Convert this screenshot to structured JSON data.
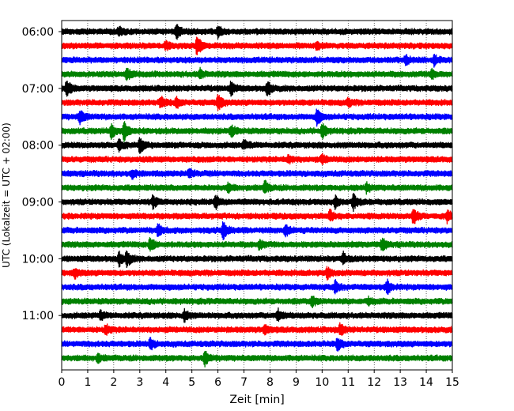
{
  "chart_data": {
    "type": "line",
    "title": "",
    "xlabel": "Zeit  [min]",
    "ylabel": "UTC (Lokalzeit = UTC + 02:00)",
    "xlim": [
      0,
      15
    ],
    "x_ticks": [
      "0",
      "1",
      "2",
      "3",
      "4",
      "5",
      "6",
      "7",
      "8",
      "9",
      "10",
      "11",
      "12",
      "13",
      "14",
      "15"
    ],
    "y_tick_labels": [
      "06:00",
      "07:00",
      "08:00",
      "09:00",
      "10:00",
      "11:00"
    ],
    "grid_x": true,
    "trace_interval_minutes": 15,
    "colors": [
      "#000000",
      "#ff0000",
      "#0000ff",
      "#008000"
    ],
    "series": [
      {
        "time": "06:00",
        "color": "#000000",
        "events": [
          [
            2.2,
            0.6
          ],
          [
            4.4,
            1.0
          ],
          [
            6.0,
            0.8
          ]
        ]
      },
      {
        "time": "06:15",
        "color": "#ff0000",
        "events": [
          [
            4.0,
            0.5
          ],
          [
            5.2,
            1.4
          ],
          [
            9.8,
            0.4
          ]
        ]
      },
      {
        "time": "06:30",
        "color": "#0000ff",
        "events": [
          [
            13.2,
            0.6
          ],
          [
            14.3,
            0.7
          ]
        ]
      },
      {
        "time": "06:45",
        "color": "#008000",
        "events": [
          [
            2.5,
            0.7
          ],
          [
            5.3,
            0.6
          ],
          [
            14.2,
            0.6
          ]
        ]
      },
      {
        "time": "07:00",
        "color": "#000000",
        "events": [
          [
            0.2,
            1.2
          ],
          [
            6.5,
            0.8
          ],
          [
            7.9,
            1.0
          ]
        ]
      },
      {
        "time": "07:15",
        "color": "#ff0000",
        "events": [
          [
            3.8,
            0.8
          ],
          [
            4.4,
            0.7
          ],
          [
            6.0,
            1.2
          ],
          [
            11.0,
            0.5
          ]
        ]
      },
      {
        "time": "07:30",
        "color": "#0000ff",
        "events": [
          [
            0.7,
            1.0
          ],
          [
            9.8,
            1.1
          ]
        ]
      },
      {
        "time": "07:45",
        "color": "#008000",
        "events": [
          [
            1.9,
            1.0
          ],
          [
            2.4,
            1.3
          ],
          [
            6.5,
            0.8
          ],
          [
            10.0,
            1.0
          ]
        ]
      },
      {
        "time": "08:00",
        "color": "#000000",
        "events": [
          [
            2.2,
            0.8
          ],
          [
            3.0,
            1.0
          ],
          [
            7.0,
            0.6
          ]
        ]
      },
      {
        "time": "08:15",
        "color": "#ff0000",
        "events": [
          [
            8.7,
            0.5
          ],
          [
            10.0,
            0.6
          ]
        ]
      },
      {
        "time": "08:30",
        "color": "#0000ff",
        "events": [
          [
            2.7,
            0.5
          ],
          [
            4.9,
            0.5
          ]
        ]
      },
      {
        "time": "08:45",
        "color": "#008000",
        "events": [
          [
            6.4,
            0.5
          ],
          [
            7.8,
            0.8
          ],
          [
            11.7,
            0.5
          ]
        ]
      },
      {
        "time": "09:00",
        "color": "#000000",
        "events": [
          [
            3.5,
            0.8
          ],
          [
            5.9,
            1.0
          ],
          [
            10.5,
            0.7
          ],
          [
            11.2,
            1.0
          ]
        ]
      },
      {
        "time": "09:15",
        "color": "#ff0000",
        "events": [
          [
            10.3,
            0.7
          ],
          [
            13.5,
            1.2
          ],
          [
            14.8,
            0.8
          ]
        ]
      },
      {
        "time": "09:30",
        "color": "#0000ff",
        "events": [
          [
            3.7,
            0.8
          ],
          [
            6.2,
            1.3
          ],
          [
            8.6,
            0.8
          ]
        ]
      },
      {
        "time": "09:45",
        "color": "#008000",
        "events": [
          [
            3.4,
            1.0
          ],
          [
            7.6,
            0.6
          ],
          [
            12.3,
            0.8
          ]
        ]
      },
      {
        "time": "10:00",
        "color": "#000000",
        "events": [
          [
            2.2,
            0.9
          ],
          [
            2.5,
            1.0
          ],
          [
            10.8,
            0.8
          ]
        ]
      },
      {
        "time": "10:15",
        "color": "#ff0000",
        "events": [
          [
            0.5,
            0.6
          ],
          [
            10.2,
            0.7
          ]
        ]
      },
      {
        "time": "10:30",
        "color": "#0000ff",
        "events": [
          [
            10.5,
            0.8
          ],
          [
            12.5,
            0.9
          ]
        ]
      },
      {
        "time": "10:45",
        "color": "#008000",
        "events": [
          [
            9.6,
            0.7
          ],
          [
            11.8,
            0.4
          ]
        ]
      },
      {
        "time": "11:00",
        "color": "#000000",
        "events": [
          [
            1.5,
            0.5
          ],
          [
            4.7,
            0.8
          ],
          [
            8.3,
            0.8
          ]
        ]
      },
      {
        "time": "11:15",
        "color": "#ff0000",
        "events": [
          [
            1.7,
            0.7
          ],
          [
            7.8,
            0.6
          ],
          [
            10.7,
            0.8
          ]
        ]
      },
      {
        "time": "11:30",
        "color": "#0000ff",
        "events": [
          [
            3.4,
            0.7
          ],
          [
            10.6,
            0.9
          ]
        ]
      },
      {
        "time": "11:45",
        "color": "#008000",
        "events": [
          [
            1.4,
            0.5
          ],
          [
            5.5,
            0.9
          ]
        ]
      }
    ]
  }
}
